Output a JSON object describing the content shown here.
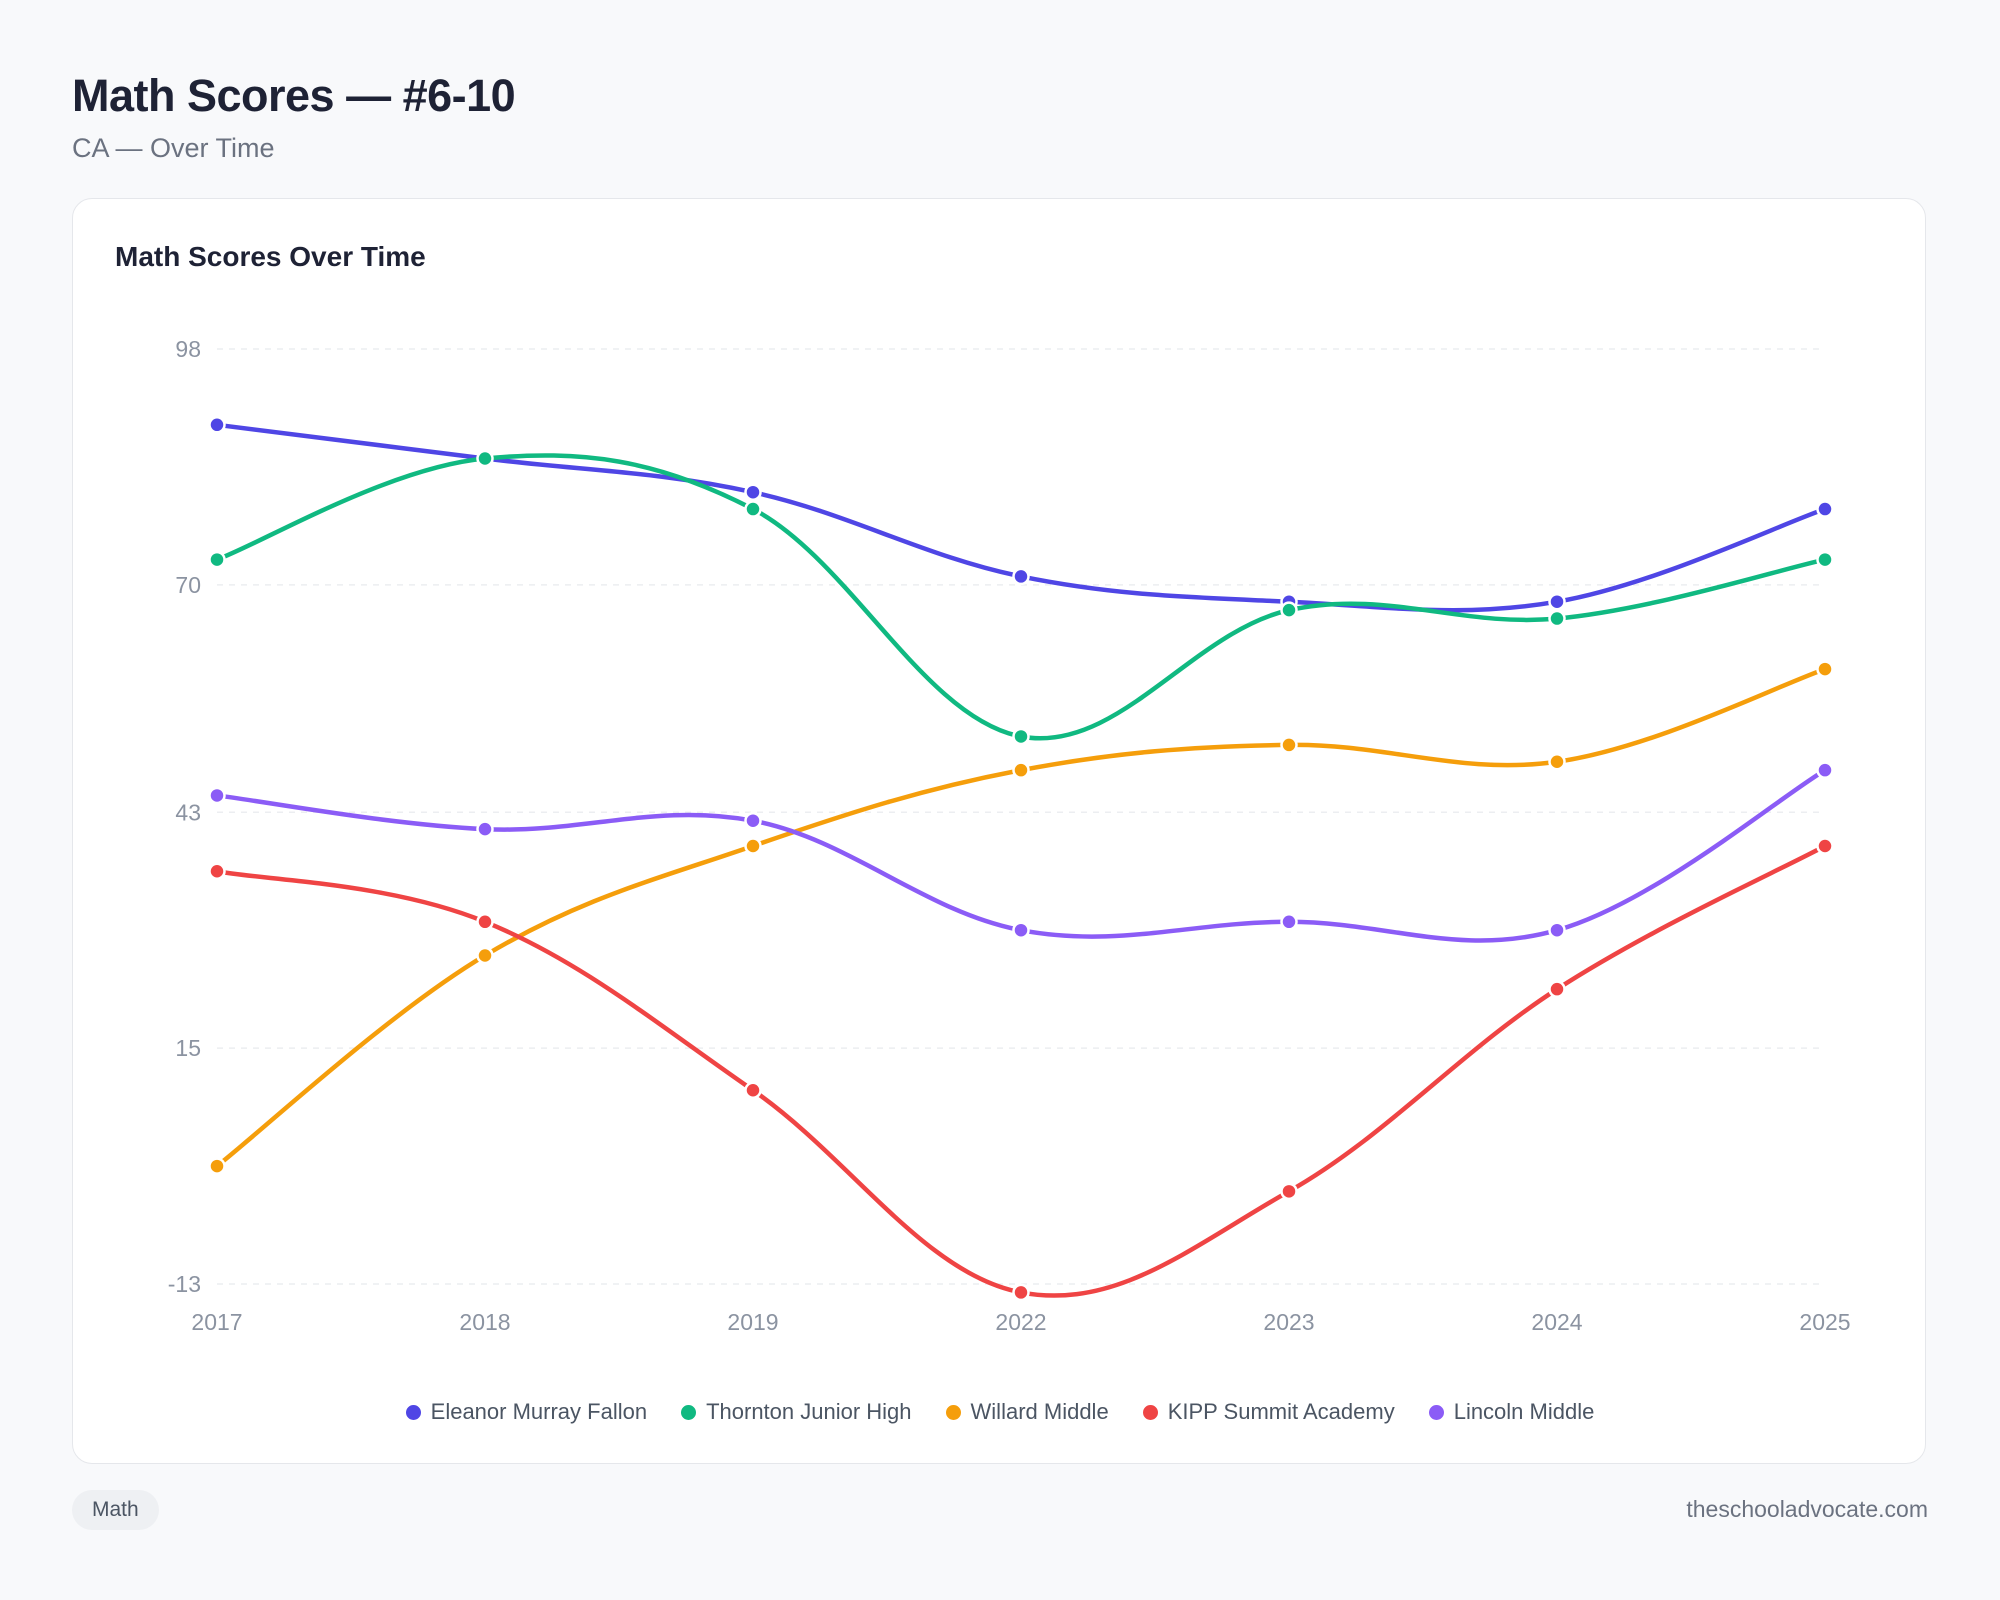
{
  "header": {
    "title": "Math Scores — #6-10",
    "subtitle": "CA — Over Time"
  },
  "card": {
    "title": "Math Scores Over Time"
  },
  "footer": {
    "tag": "Math",
    "site": "theschooladvocate.com"
  },
  "chart_data": {
    "type": "line",
    "title": "Math Scores Over Time",
    "categories": [
      "2017",
      "2018",
      "2019",
      "2022",
      "2023",
      "2024",
      "2025"
    ],
    "yticks": [
      98,
      70,
      43,
      15,
      -13
    ],
    "ylim": [
      -13,
      98
    ],
    "grid": true,
    "legend_position": "bottom",
    "series": [
      {
        "name": "Eleanor Murray Fallon",
        "color": "#4f46e5",
        "values": [
          89,
          85,
          81,
          71,
          68,
          68,
          79
        ]
      },
      {
        "name": "Thornton Junior High",
        "color": "#10b981",
        "values": [
          73,
          85,
          79,
          52,
          67,
          66,
          73
        ]
      },
      {
        "name": "Willard Middle",
        "color": "#f59e0b",
        "values": [
          1,
          26,
          39,
          48,
          51,
          49,
          60
        ]
      },
      {
        "name": "KIPP Summit Academy",
        "color": "#ef4444",
        "values": [
          36,
          30,
          10,
          -14,
          -2,
          22,
          39
        ]
      },
      {
        "name": "Lincoln Middle",
        "color": "#8b5cf6",
        "values": [
          45,
          41,
          42,
          29,
          30,
          29,
          48
        ]
      }
    ]
  }
}
